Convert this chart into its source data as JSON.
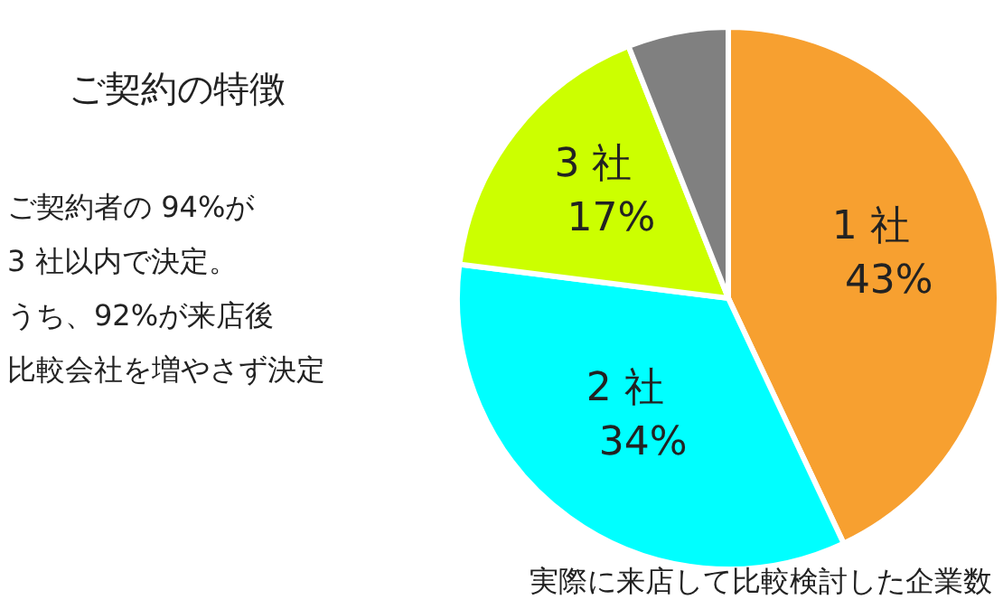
{
  "chart_data": {
    "type": "pie",
    "title": "ご契約の特徴",
    "categories": [
      "1 社",
      "2 社",
      "3 社",
      null
    ],
    "values": [
      43,
      34,
      17,
      6
    ],
    "colors": [
      "#f7a030",
      "#00ffff",
      "#ccff00",
      "#808080"
    ],
    "value_labels": [
      "43%",
      "34%",
      "17%",
      null
    ],
    "annotations": [
      "ご契約者の 94%が",
      "3 社以内で決定。",
      "うち、92%が来店後",
      "比較会社を増やさず決定",
      "実際に来店して比較検討した企業数"
    ]
  }
}
